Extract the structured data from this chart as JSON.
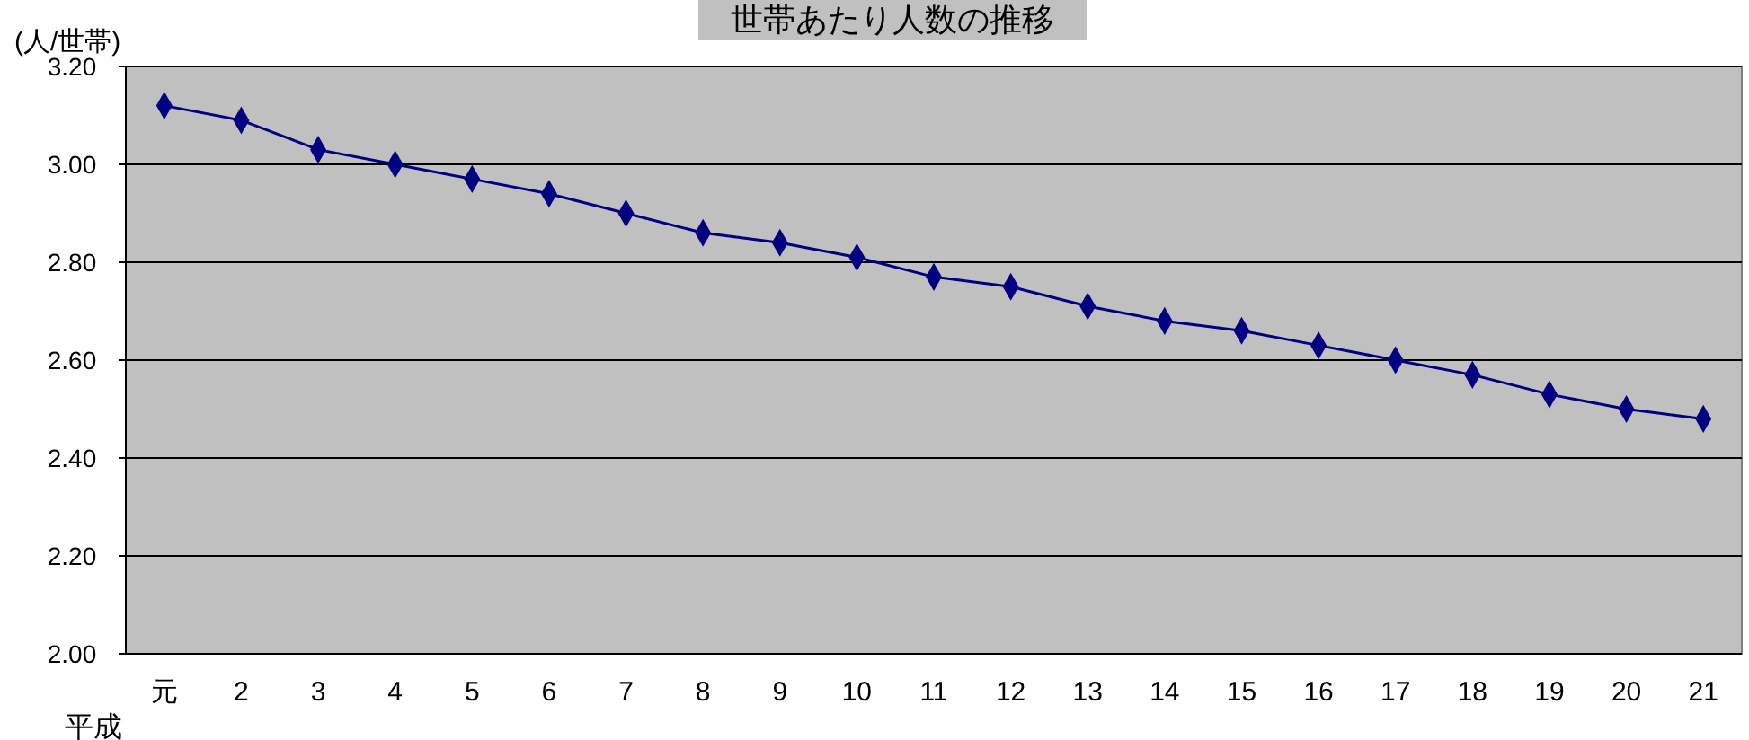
{
  "chart_data": {
    "type": "line",
    "title": "世帯あたり人数の推移",
    "ylabel": "(人/世帯)",
    "xlabel": "平成",
    "categories": [
      "元",
      "2",
      "3",
      "4",
      "5",
      "6",
      "7",
      "8",
      "9",
      "10",
      "11",
      "12",
      "13",
      "14",
      "15",
      "16",
      "17",
      "18",
      "19",
      "20",
      "21"
    ],
    "series": [
      {
        "color": "#000080",
        "values": [
          3.12,
          3.09,
          3.03,
          3.0,
          2.97,
          2.94,
          2.9,
          2.86,
          2.84,
          2.81,
          2.77,
          2.75,
          2.71,
          2.68,
          2.66,
          2.63,
          2.6,
          2.57,
          2.53,
          2.5,
          2.48
        ]
      }
    ],
    "ylim": [
      2.0,
      3.2
    ],
    "yticks": [
      {
        "value": 2.0,
        "label": "2.00"
      },
      {
        "value": 2.2,
        "label": "2.20"
      },
      {
        "value": 2.4,
        "label": "2.40"
      },
      {
        "value": 2.6,
        "label": "2.60"
      },
      {
        "value": 2.8,
        "label": "2.80"
      },
      {
        "value": 3.0,
        "label": "3.00"
      },
      {
        "value": 3.2,
        "label": "3.20"
      }
    ],
    "grid": "y",
    "marker": "diamond",
    "line_style": "solid"
  }
}
